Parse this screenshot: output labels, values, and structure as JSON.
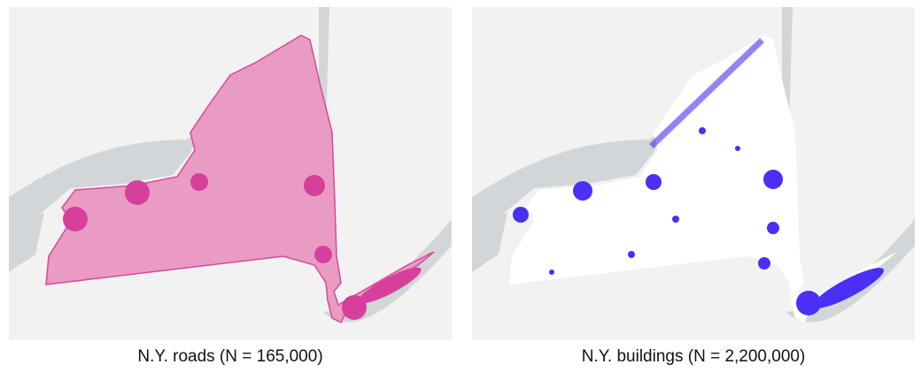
{
  "panels": [
    {
      "caption": "N.Y. roads (N = 165,000)"
    },
    {
      "caption": "N.Y. buildings (N = 2,200,000)"
    }
  ]
}
